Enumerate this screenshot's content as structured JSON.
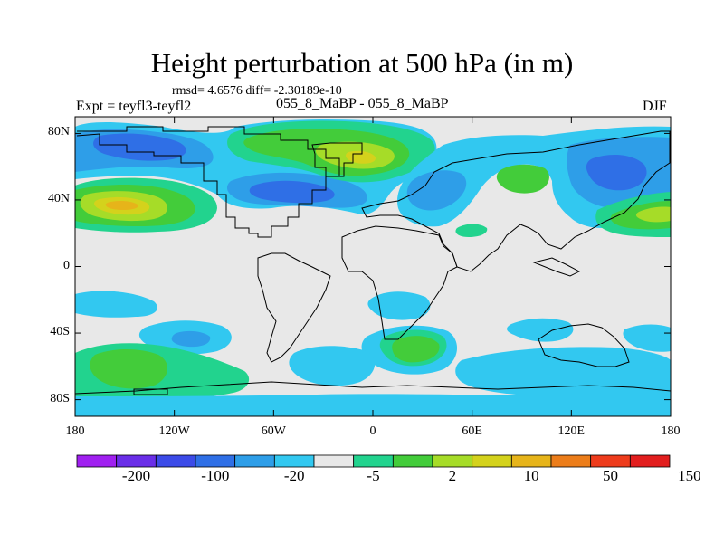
{
  "title": "Height perturbation at 500 hPa (in m)",
  "stats": "rmsd= 4.6576 diff= -2.30189e-10",
  "left_label": "Expt = teyfl3-teyfl2",
  "subtitle": "055_8_MaBP - 055_8_MaBP",
  "season": "DJF",
  "y_ticks": [
    "80N",
    "40N",
    "0",
    "40S",
    "80S"
  ],
  "x_ticks": [
    "180",
    "120W",
    "60W",
    "0",
    "60E",
    "120E",
    "180"
  ],
  "colorbar": {
    "colors": [
      "#a020f0",
      "#6a2ee8",
      "#3c4be8",
      "#2f6fe6",
      "#2e9ee8",
      "#32c8f0",
      "#e8e8e8",
      "#22d38e",
      "#43cc3a",
      "#a6dc28",
      "#d4d21c",
      "#e6b41a",
      "#ec7d1a",
      "#ee3c1c",
      "#e21e1e"
    ],
    "labels": [
      "-200",
      "-100",
      "-20",
      "-5",
      "2",
      "10",
      "50",
      "150"
    ]
  },
  "map_colors": {
    "background": "#e8e8e8",
    "blue_light": "#32c8f0",
    "blue_mid": "#2e9ee8",
    "blue_dark": "#2f6fe6",
    "green_cyan": "#22d38e",
    "green": "#43cc3a",
    "yellow_green": "#a6dc28",
    "yellow": "#d4d21c",
    "orange": "#e6b41a"
  }
}
